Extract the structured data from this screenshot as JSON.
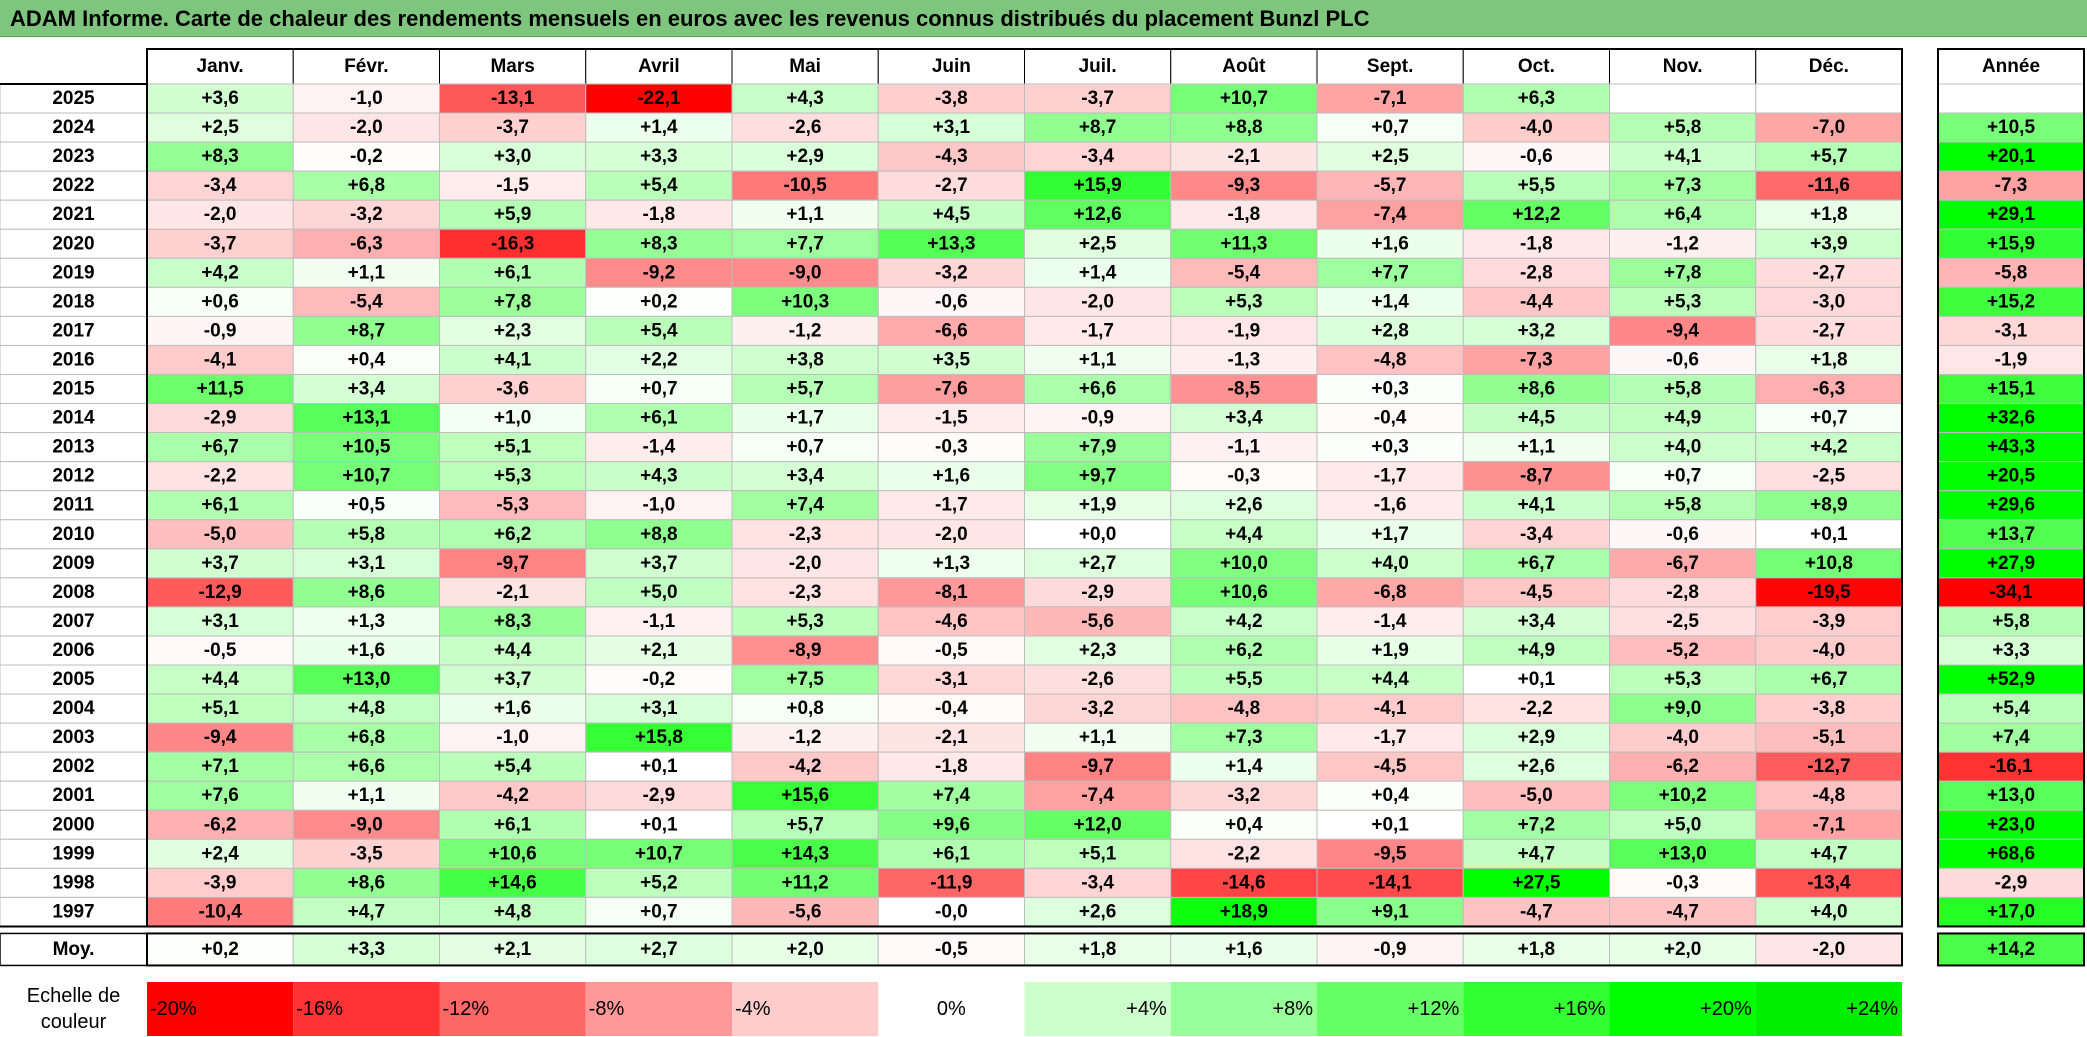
{
  "title": "ADAM Informe. Carte de chaleur des rendements mensuels en euros avec les revenus connus distribués du placement Bunzl PLC",
  "chart_data": {
    "type": "heatmap",
    "months": [
      "Janv.",
      "Févr.",
      "Mars",
      "Avril",
      "Mai",
      "Juin",
      "Juil.",
      "Août",
      "Sept.",
      "Oct.",
      "Nov.",
      "Déc."
    ],
    "year_header": "Année",
    "rows": [
      {
        "year": "2025",
        "values": [
          3.6,
          -1.0,
          -13.1,
          -22.1,
          4.3,
          -3.8,
          -3.7,
          10.7,
          -7.1,
          6.3,
          null,
          null
        ],
        "annual": null
      },
      {
        "year": "2024",
        "values": [
          2.5,
          -2.0,
          -3.7,
          1.4,
          -2.6,
          3.1,
          8.7,
          8.8,
          0.7,
          -4.0,
          5.8,
          -7.0
        ],
        "annual": 10.5
      },
      {
        "year": "2023",
        "values": [
          8.3,
          -0.2,
          3.0,
          3.3,
          2.9,
          -4.3,
          -3.4,
          -2.1,
          2.5,
          -0.6,
          4.1,
          5.7
        ],
        "annual": 20.1
      },
      {
        "year": "2022",
        "values": [
          -3.4,
          6.8,
          -1.5,
          5.4,
          -10.5,
          -2.7,
          15.9,
          -9.3,
          -5.7,
          5.5,
          7.3,
          -11.6
        ],
        "annual": -7.3
      },
      {
        "year": "2021",
        "values": [
          -2.0,
          -3.2,
          5.9,
          -1.8,
          1.1,
          4.5,
          12.6,
          -1.8,
          -7.4,
          12.2,
          6.4,
          1.8
        ],
        "annual": 29.1
      },
      {
        "year": "2020",
        "values": [
          -3.7,
          -6.3,
          -16.3,
          8.3,
          7.7,
          13.3,
          2.5,
          11.3,
          1.6,
          -1.8,
          -1.2,
          3.9
        ],
        "annual": 15.9
      },
      {
        "year": "2019",
        "values": [
          4.2,
          1.1,
          6.1,
          -9.2,
          -9.0,
          -3.2,
          1.4,
          -5.4,
          7.7,
          -2.8,
          7.8,
          -2.7
        ],
        "annual": -5.8
      },
      {
        "year": "2018",
        "values": [
          0.6,
          -5.4,
          7.8,
          0.2,
          10.3,
          -0.6,
          -2.0,
          5.3,
          1.4,
          -4.4,
          5.3,
          -3.0
        ],
        "annual": 15.2
      },
      {
        "year": "2017",
        "values": [
          -0.9,
          8.7,
          2.3,
          5.4,
          -1.2,
          -6.6,
          -1.7,
          -1.9,
          2.8,
          3.2,
          -9.4,
          -2.7
        ],
        "annual": -3.1
      },
      {
        "year": "2016",
        "values": [
          -4.1,
          0.4,
          4.1,
          2.2,
          3.8,
          3.5,
          1.1,
          -1.3,
          -4.8,
          -7.3,
          -0.6,
          1.8
        ],
        "annual": -1.9
      },
      {
        "year": "2015",
        "values": [
          11.5,
          3.4,
          -3.6,
          0.7,
          5.7,
          -7.6,
          6.6,
          -8.5,
          0.3,
          8.6,
          5.8,
          -6.3
        ],
        "annual": 15.1
      },
      {
        "year": "2014",
        "values": [
          -2.9,
          13.1,
          1.0,
          6.1,
          1.7,
          -1.5,
          -0.9,
          3.4,
          -0.4,
          4.5,
          4.9,
          0.7
        ],
        "annual": 32.6
      },
      {
        "year": "2013",
        "values": [
          6.7,
          10.5,
          5.1,
          -1.4,
          0.7,
          -0.3,
          7.9,
          -1.1,
          0.3,
          1.1,
          4.0,
          4.2
        ],
        "annual": 43.3
      },
      {
        "year": "2012",
        "values": [
          -2.2,
          10.7,
          5.3,
          4.3,
          3.4,
          1.6,
          9.7,
          -0.3,
          -1.7,
          -8.7,
          0.7,
          -2.5
        ],
        "annual": 20.5
      },
      {
        "year": "2011",
        "values": [
          6.1,
          0.5,
          -5.3,
          -1.0,
          7.4,
          -1.7,
          1.9,
          2.6,
          -1.6,
          4.1,
          5.8,
          8.9
        ],
        "annual": 29.6
      },
      {
        "year": "2010",
        "values": [
          -5.0,
          5.8,
          6.2,
          8.8,
          -2.3,
          -2.0,
          0.0,
          4.4,
          1.7,
          -3.4,
          -0.6,
          0.1
        ],
        "annual": 13.7
      },
      {
        "year": "2009",
        "values": [
          3.7,
          3.1,
          -9.7,
          3.7,
          -2.0,
          1.3,
          2.7,
          10.0,
          4.0,
          6.7,
          -6.7,
          10.8
        ],
        "annual": 27.9
      },
      {
        "year": "2008",
        "values": [
          -12.9,
          8.6,
          -2.1,
          5.0,
          -2.3,
          -8.1,
          -2.9,
          10.6,
          -6.8,
          -4.5,
          -2.8,
          -19.5
        ],
        "annual": -34.1
      },
      {
        "year": "2007",
        "values": [
          3.1,
          1.3,
          8.3,
          -1.1,
          5.3,
          -4.6,
          -5.6,
          4.2,
          -1.4,
          3.4,
          -2.5,
          -3.9
        ],
        "annual": 5.8
      },
      {
        "year": "2006",
        "values": [
          -0.5,
          1.6,
          4.4,
          2.1,
          -8.9,
          -0.5,
          2.3,
          6.2,
          1.9,
          4.9,
          -5.2,
          -4.0
        ],
        "annual": 3.3
      },
      {
        "year": "2005",
        "values": [
          4.4,
          13.0,
          3.7,
          -0.2,
          7.5,
          -3.1,
          -2.6,
          5.5,
          4.4,
          0.1,
          5.3,
          6.7
        ],
        "annual": 52.9
      },
      {
        "year": "2004",
        "values": [
          5.1,
          4.8,
          1.6,
          3.1,
          0.8,
          -0.4,
          -3.2,
          -4.8,
          -4.1,
          -2.2,
          9.0,
          -3.8
        ],
        "annual": 5.4
      },
      {
        "year": "2003",
        "values": [
          -9.4,
          6.8,
          -1.0,
          15.8,
          -1.2,
          -2.1,
          1.1,
          7.3,
          -1.7,
          2.9,
          -4.0,
          -5.1
        ],
        "annual": 7.4
      },
      {
        "year": "2002",
        "values": [
          7.1,
          6.6,
          5.4,
          0.1,
          -4.2,
          -1.8,
          -9.7,
          1.4,
          -4.5,
          2.6,
          -6.2,
          -12.7
        ],
        "annual": -16.1
      },
      {
        "year": "2001",
        "values": [
          7.6,
          1.1,
          -4.2,
          -2.9,
          15.6,
          7.4,
          -7.4,
          -3.2,
          0.4,
          -5.0,
          10.2,
          -4.8
        ],
        "annual": 13.0
      },
      {
        "year": "2000",
        "values": [
          -6.2,
          -9.0,
          6.1,
          0.1,
          5.7,
          9.6,
          12.0,
          0.4,
          0.1,
          7.2,
          5.0,
          -7.1
        ],
        "annual": 23.0
      },
      {
        "year": "1999",
        "values": [
          2.4,
          -3.5,
          10.6,
          10.7,
          14.3,
          6.1,
          5.1,
          -2.2,
          -9.5,
          4.7,
          13.0,
          4.7
        ],
        "annual": 68.6
      },
      {
        "year": "1998",
        "values": [
          -3.9,
          8.6,
          14.6,
          5.2,
          11.2,
          -11.9,
          -3.4,
          -14.6,
          -14.1,
          27.5,
          -0.3,
          -13.4
        ],
        "annual": -2.9
      },
      {
        "year": "1997",
        "values": [
          -10.4,
          4.7,
          4.8,
          0.7,
          -5.6,
          -0.0,
          2.6,
          18.9,
          9.1,
          -4.7,
          -4.7,
          4.0
        ],
        "annual": 17.0
      }
    ],
    "average": {
      "label": "Moy.",
      "values": [
        0.2,
        3.3,
        2.1,
        2.7,
        2.0,
        -0.5,
        1.8,
        1.6,
        -0.9,
        1.8,
        2.0,
        -2.0
      ],
      "annual": 14.2
    },
    "scale": {
      "label_line1": "Echelle de",
      "label_line2": "couleur",
      "stops": [
        {
          "label": "-20%",
          "value": -20,
          "color": "#ff0000"
        },
        {
          "label": "-16%",
          "value": -16,
          "color": "#ff3333"
        },
        {
          "label": "-12%",
          "value": -12,
          "color": "#ff6666"
        },
        {
          "label": "-8%",
          "value": -8,
          "color": "#ff9999"
        },
        {
          "label": "-4%",
          "value": -4,
          "color": "#ffcccc"
        },
        {
          "label": "0%",
          "value": 0,
          "color": "#ffffff"
        },
        {
          "label": "+4%",
          "value": 4,
          "color": "#ccffcc"
        },
        {
          "label": "+8%",
          "value": 8,
          "color": "#99ff99"
        },
        {
          "label": "+12%",
          "value": 12,
          "color": "#66ff66"
        },
        {
          "label": "+16%",
          "value": 16,
          "color": "#33ff33"
        },
        {
          "label": "+20%",
          "value": 20,
          "color": "#00ff00"
        },
        {
          "label": "+24%",
          "value": 24,
          "color": "#00ee00"
        }
      ]
    }
  },
  "colors": {
    "title_bg": "#7ec67e",
    "negative_max": "#ff0000",
    "positive_max": "#00ff00",
    "grid": "#bdbdbd",
    "border": "#000000"
  }
}
